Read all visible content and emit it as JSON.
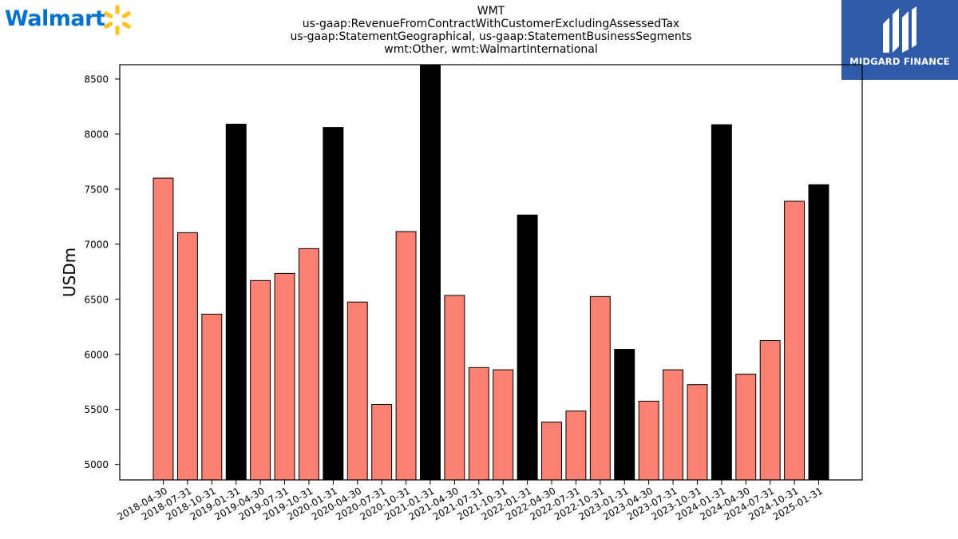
{
  "brand": {
    "wordmark": "Walmart",
    "color": "#0071ce",
    "spark_color": "#ffc220",
    "logo_icon": "walmart-spark-icon"
  },
  "publisher": {
    "name": "MIDGARD FINANCE",
    "background": "#2e5aa8",
    "logo_icon": "midgard-logo-icon"
  },
  "chart_data": {
    "type": "bar",
    "title_lines": [
      "WMT",
      "us-gaap:RevenueFromContractWithCustomerExcludingAssessedTax",
      "us-gaap:StatementGeographical, us-gaap:StatementBusinessSegments",
      "wmt:Other, wmt:WalmartInternational"
    ],
    "ylabel": "USDm",
    "xlabel": "",
    "ylim": [
      4860,
      8630
    ],
    "yticks": [
      5000,
      5500,
      6000,
      6500,
      7000,
      7500,
      8000,
      8500
    ],
    "grid": false,
    "colors": {
      "quarter": "#fa8072",
      "fiscal_year_end": "#000000"
    },
    "categories": [
      "2018-04-30",
      "2018-07-31",
      "2018-10-31",
      "2019-01-31",
      "2019-04-30",
      "2019-07-31",
      "2019-10-31",
      "2020-01-31",
      "2020-04-30",
      "2020-07-31",
      "2020-10-31",
      "2021-01-31",
      "2021-04-30",
      "2021-07-31",
      "2021-10-31",
      "2022-01-31",
      "2022-04-30",
      "2022-07-31",
      "2022-10-31",
      "2023-01-31",
      "2023-04-30",
      "2023-07-31",
      "2023-10-31",
      "2024-01-31",
      "2024-04-30",
      "2024-07-31",
      "2024-10-31",
      "2025-01-31"
    ],
    "values": [
      7600,
      7105,
      6365,
      8090,
      6670,
      6735,
      6960,
      8060,
      6475,
      5545,
      7115,
      8640,
      6535,
      5880,
      5860,
      7265,
      5385,
      5485,
      6525,
      6045,
      5575,
      5860,
      5725,
      8085,
      5820,
      6125,
      7390,
      7540
    ],
    "highlight": [
      false,
      false,
      false,
      true,
      false,
      false,
      false,
      true,
      false,
      false,
      false,
      true,
      false,
      false,
      false,
      true,
      false,
      false,
      false,
      true,
      false,
      false,
      false,
      true,
      false,
      false,
      false,
      true
    ]
  }
}
